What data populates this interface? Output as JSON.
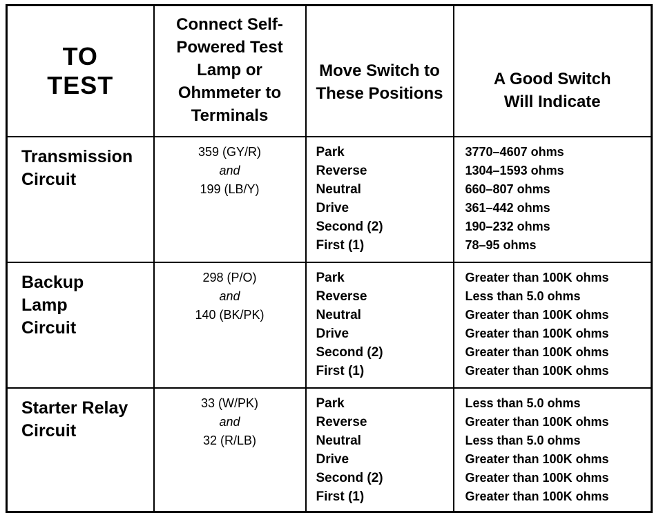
{
  "headers": {
    "to_test": "TO TEST",
    "connect": "Connect Self-Powered Test Lamp or Ohmmeter to Terminals",
    "move": "Move Switch to These Positions",
    "good": "A Good Switch Will Indicate"
  },
  "rows": [
    {
      "circuit": "Transmission Circuit",
      "term1": "359 (GY/R)",
      "and": "and",
      "term2": "199 (LB/Y)",
      "positions": [
        "Park",
        "Reverse",
        "Neutral",
        "Drive",
        "Second (2)",
        "First (1)"
      ],
      "readings": [
        "3770–4607 ohms",
        "1304–1593 ohms",
        "660–807 ohms",
        "361–442 ohms",
        "190–232 ohms",
        "78–95 ohms"
      ]
    },
    {
      "circuit": "Backup Lamp Circuit",
      "term1": "298 (P/O)",
      "and": "and",
      "term2": "140 (BK/PK)",
      "positions": [
        "Park",
        "Reverse",
        "Neutral",
        "Drive",
        "Second (2)",
        "First (1)"
      ],
      "readings": [
        "Greater than 100K ohms",
        "Less than 5.0 ohms",
        "Greater than 100K ohms",
        "Greater than 100K ohms",
        "Greater than 100K ohms",
        "Greater than 100K ohms"
      ]
    },
    {
      "circuit": "Starter Relay Circuit",
      "term1": "33 (W/PK)",
      "and": "and",
      "term2": "32 (R/LB)",
      "positions": [
        "Park",
        "Reverse",
        "Neutral",
        "Drive",
        "Second (2)",
        "First (1)"
      ],
      "readings": [
        "Less than 5.0 ohms",
        "Greater than 100K ohms",
        "Less than 5.0 ohms",
        "Greater than 100K ohms",
        "Greater than 100K ohms",
        "Greater than 100K ohms"
      ]
    }
  ]
}
